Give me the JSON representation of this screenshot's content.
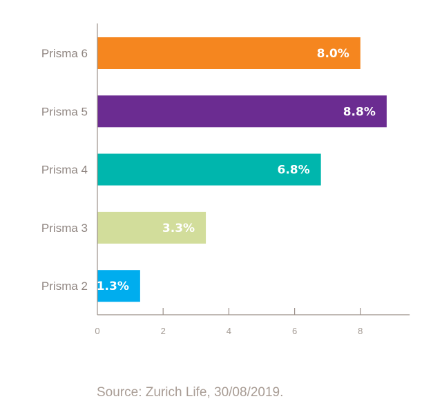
{
  "chart_data": {
    "type": "bar",
    "orientation": "horizontal",
    "title": "",
    "xlabel": "",
    "ylabel": "",
    "categories": [
      "Prisma 6",
      "Prisma 5",
      "Prisma 4",
      "Prisma 3",
      "Prisma 2"
    ],
    "values": [
      8.0,
      8.8,
      6.8,
      3.3,
      1.3
    ],
    "data_labels": [
      "8.0%",
      "8.8%",
      "6.8%",
      "3.3%",
      "1.3%"
    ],
    "colors": [
      "#f5861f",
      "#6b2c91",
      "#00b6ad",
      "#d2dd9b",
      "#00adee"
    ],
    "xlim": [
      0,
      9.5
    ],
    "xticks": [
      0,
      2,
      4,
      6,
      8
    ],
    "xtick_labels": [
      "0",
      "2",
      "4",
      "6",
      "8"
    ],
    "grid": false,
    "legend": "none"
  },
  "source": "Source: Zurich Life, 30/08/2019."
}
